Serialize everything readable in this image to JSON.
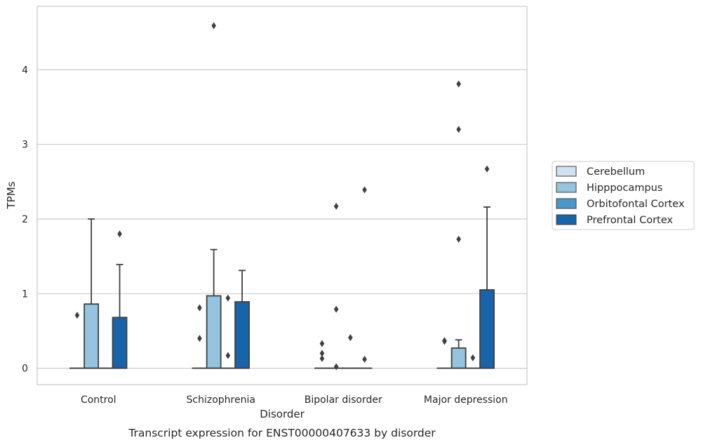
{
  "chart_data": {
    "type": "box",
    "caption": "Transcript expression for ENST00000407633 by disorder",
    "xlabel": "Disorder",
    "ylabel": "TPMs",
    "ylim": [
      -0.22,
      4.85
    ],
    "yticks": [
      0,
      1,
      2,
      3,
      4
    ],
    "grid": "horizontal",
    "legend_position": "right",
    "categories": [
      "Control",
      "Schizophrenia",
      "Bipolar disorder",
      "Major depression"
    ],
    "series": [
      {
        "name": "Cerebellum",
        "color": "#d0e1f2",
        "boxes": [
          {
            "q1": 0,
            "median": 0,
            "q3": 0,
            "whislo": 0,
            "whishi": 0,
            "fliers": [
              0.71
            ]
          },
          {
            "q1": 0,
            "median": 0,
            "q3": 0,
            "whislo": 0,
            "whishi": 0,
            "fliers": [
              0.4,
              0.81
            ]
          },
          {
            "q1": 0,
            "median": 0,
            "q3": 0,
            "whislo": 0,
            "whishi": 0,
            "fliers": [
              0.13,
              0.2,
              0.33
            ]
          },
          {
            "q1": 0,
            "median": 0,
            "q3": 0,
            "whislo": 0,
            "whishi": 0,
            "fliers": [
              0.36,
              0.37
            ]
          }
        ]
      },
      {
        "name": "Hipppocampus",
        "color": "#94c4df",
        "boxes": [
          {
            "q1": 0,
            "median": 0,
            "q3": 0.86,
            "whislo": 0,
            "whishi": 2.0,
            "fliers": []
          },
          {
            "q1": 0,
            "median": 0,
            "q3": 0.97,
            "whislo": 0,
            "whishi": 1.59,
            "fliers": [
              4.59
            ]
          },
          {
            "q1": 0,
            "median": 0,
            "q3": 0,
            "whislo": 0,
            "whishi": 0,
            "fliers": [
              0.02,
              0.79,
              2.17
            ]
          },
          {
            "q1": 0,
            "median": 0,
            "q3": 0.27,
            "whislo": 0,
            "whishi": 0.38,
            "fliers": [
              1.73,
              3.2,
              3.81
            ]
          }
        ]
      },
      {
        "name": "Orbitofontal Cortex",
        "color": "#4a98c9",
        "boxes": [
          {
            "q1": 0,
            "median": 0,
            "q3": 0,
            "whislo": 0,
            "whishi": 0,
            "fliers": []
          },
          {
            "q1": 0,
            "median": 0,
            "q3": 0,
            "whislo": 0,
            "whishi": 0,
            "fliers": [
              0.17,
              0.94
            ]
          },
          {
            "q1": 0,
            "median": 0,
            "q3": 0,
            "whislo": 0,
            "whishi": 0,
            "fliers": [
              0.41
            ]
          },
          {
            "q1": 0,
            "median": 0,
            "q3": 0,
            "whislo": 0,
            "whishi": 0,
            "fliers": [
              0.14
            ]
          }
        ]
      },
      {
        "name": "Prefrontal Cortex",
        "color": "#1764ab",
        "boxes": [
          {
            "q1": 0,
            "median": 0,
            "q3": 0.68,
            "whislo": 0,
            "whishi": 1.39,
            "fliers": [
              1.8
            ]
          },
          {
            "q1": 0,
            "median": 0,
            "q3": 0.89,
            "whislo": 0,
            "whishi": 1.31,
            "fliers": []
          },
          {
            "q1": 0,
            "median": 0,
            "q3": 0,
            "whislo": 0,
            "whishi": 0,
            "fliers": [
              0.12,
              2.39
            ]
          },
          {
            "q1": 0,
            "median": 0,
            "q3": 1.05,
            "whislo": 0,
            "whishi": 2.16,
            "fliers": [
              2.67
            ]
          }
        ]
      }
    ]
  }
}
